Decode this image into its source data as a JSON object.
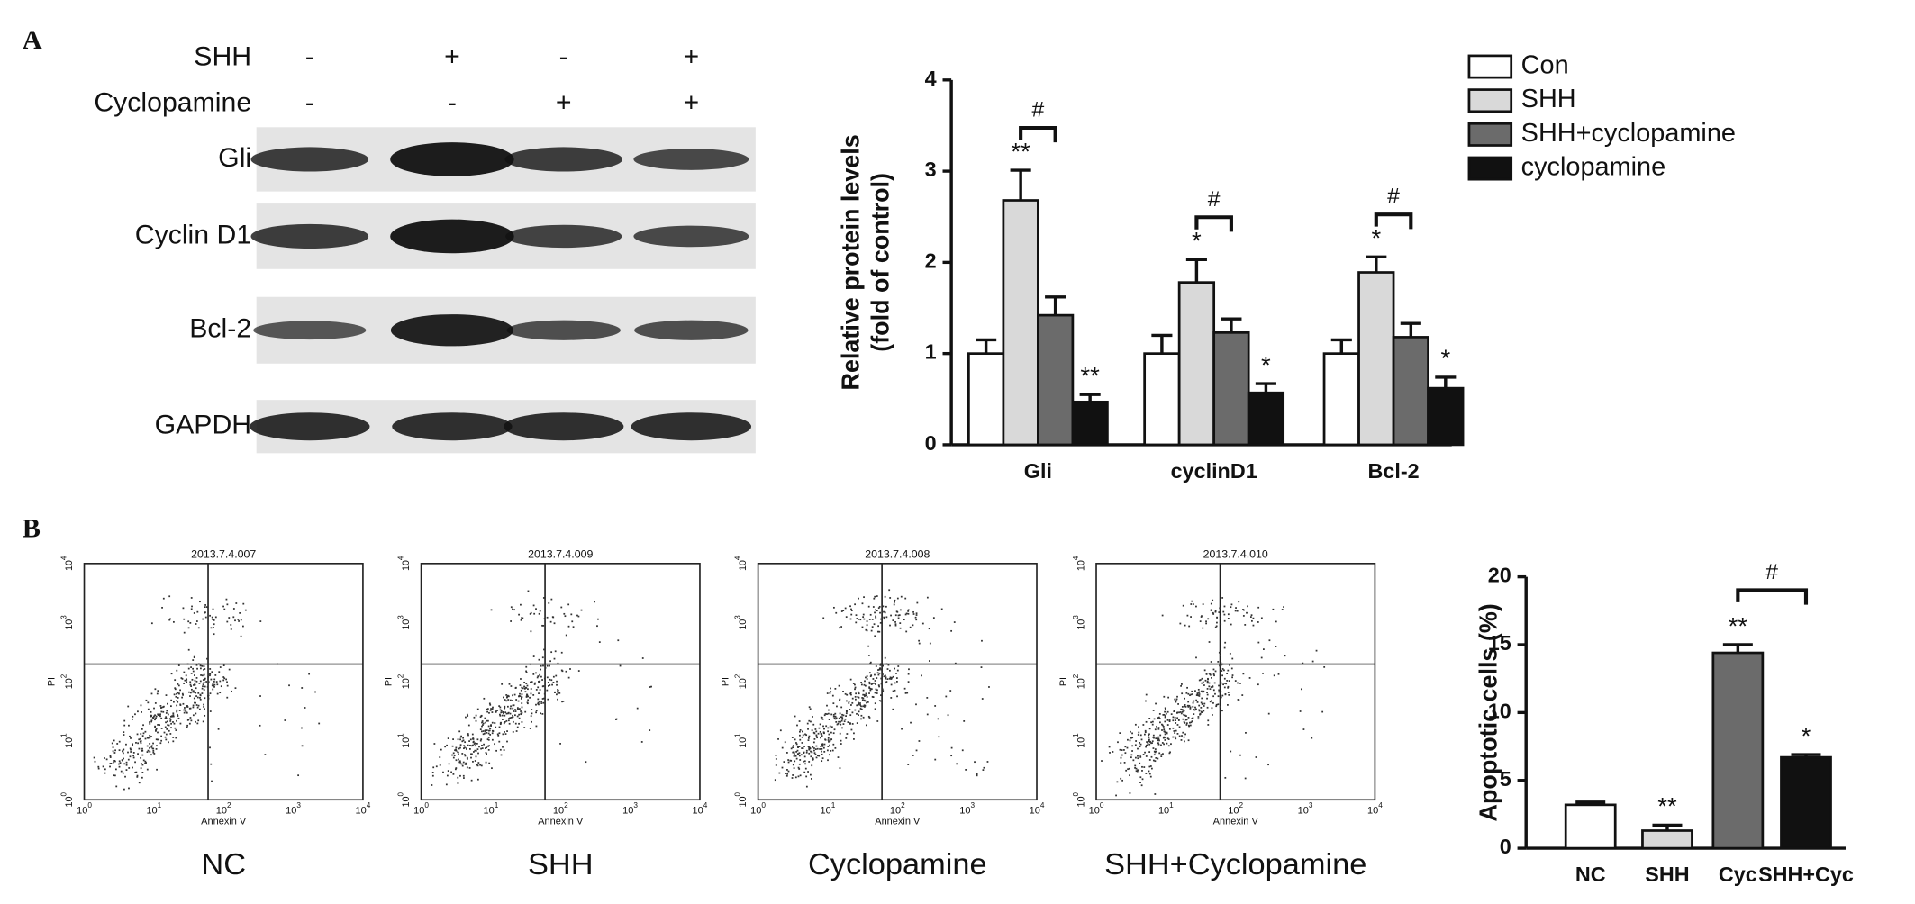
{
  "panel_labels": [
    "A",
    "B"
  ],
  "western_blot": {
    "treatments": [
      {
        "name": "SHH",
        "signs": [
          "-",
          "+",
          "-",
          "+"
        ]
      },
      {
        "name": "Cyclopamine",
        "signs": [
          "-",
          "-",
          "+",
          "+"
        ]
      }
    ],
    "proteins": [
      "Gli",
      "Cyclin D1",
      "Bcl-2",
      "GAPDH"
    ]
  },
  "flow_cytometry": {
    "x_label": "Annexin V",
    "y_label": "PI",
    "ticks": [
      {
        "base": "10",
        "exp": "0"
      },
      {
        "base": "10",
        "exp": "1"
      },
      {
        "base": "10",
        "exp": "2"
      },
      {
        "base": "10",
        "exp": "3"
      },
      {
        "base": "10",
        "exp": "4"
      }
    ],
    "samples": [
      {
        "id": "2013.7.4.007",
        "name": "NC"
      },
      {
        "id": "2013.7.4.009",
        "name": "SHH"
      },
      {
        "id": "2013.7.4.008",
        "name": "Cyclopamine"
      },
      {
        "id": "2013.7.4.010",
        "name": "SHH+Cyclopamine"
      }
    ]
  },
  "chart_data": [
    {
      "type": "bar",
      "y_label": [
        "Relative protein levels",
        "(fold of control)"
      ],
      "categories": [
        "Gli",
        "cyclinD1",
        "Bcl-2"
      ],
      "ylim": [
        0,
        4
      ],
      "yticks": [
        0,
        1,
        2,
        3,
        4
      ],
      "legend": "top-right",
      "series": [
        {
          "name": "Con",
          "color": "#ffffff",
          "values": [
            1,
            1,
            1
          ],
          "errors": [
            0.15,
            0.2,
            0.15
          ]
        },
        {
          "name": "SHH",
          "color": "#d9d9d9",
          "values": [
            2.68,
            1.78,
            1.89
          ],
          "errors": [
            0.33,
            0.25,
            0.17
          ],
          "significance": [
            "**",
            "*",
            "*"
          ]
        },
        {
          "name": "SHH+cyclopamine",
          "color": "#6b6b6b",
          "values": [
            1.42,
            1.23,
            1.18
          ],
          "errors": [
            0.2,
            0.15,
            0.15
          ]
        },
        {
          "name": "cyclopamine",
          "color": "#111111",
          "values": [
            0.47,
            0.57,
            0.62
          ],
          "errors": [
            0.08,
            0.1,
            0.12
          ],
          "significance": [
            "**",
            "*",
            "*"
          ]
        }
      ],
      "bracket_labels": [
        "#",
        "#",
        "#"
      ]
    },
    {
      "type": "bar",
      "y_label": [
        "Apoptotic cells (%)"
      ],
      "categories": [
        "NC",
        "SHH",
        "Cyc",
        "SHH+Cyc"
      ],
      "ylim": [
        0,
        20
      ],
      "yticks": [
        0,
        5,
        10,
        15,
        20
      ],
      "series": [
        {
          "colors": [
            "#ffffff",
            "#d9d9d9",
            "#6b6b6b",
            "#111111"
          ],
          "values": [
            3.2,
            1.3,
            14.4,
            6.7
          ],
          "errors": [
            0.2,
            0.4,
            0.6,
            0.2
          ],
          "significance": [
            null,
            "**",
            "**",
            "*"
          ]
        }
      ],
      "bracket_labels": [
        "#"
      ]
    }
  ]
}
